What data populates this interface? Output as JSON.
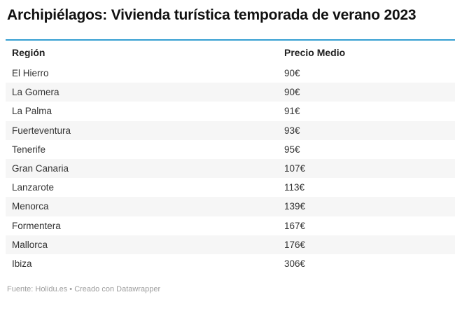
{
  "header": {
    "title": "Archipiélagos: Vivienda turística temporada de verano 2023"
  },
  "table": {
    "columns": [
      {
        "label": "Región"
      },
      {
        "label": "Precio Medio"
      }
    ],
    "rows": [
      {
        "region": "El Hierro",
        "price": "90€"
      },
      {
        "region": "La Gomera",
        "price": "90€"
      },
      {
        "region": "La Palma",
        "price": "91€"
      },
      {
        "region": "Fuerteventura",
        "price": "93€"
      },
      {
        "region": "Tenerife",
        "price": "95€"
      },
      {
        "region": "Gran Canaria",
        "price": "107€"
      },
      {
        "region": "Lanzarote",
        "price": "113€"
      },
      {
        "region": "Menorca",
        "price": "139€"
      },
      {
        "region": "Formentera",
        "price": "167€"
      },
      {
        "region": "Mallorca",
        "price": "176€"
      },
      {
        "region": "Ibiza",
        "price": "306€"
      }
    ]
  },
  "footer": {
    "source_prefix": "Fuente:",
    "source_link": "Holidu.es",
    "attribution_prefix": "• Creado con",
    "attribution_link": "Datawrapper"
  },
  "colors": {
    "accent_line": "#359fd2",
    "stripe": "#f6f6f6",
    "body_text": "#333333",
    "header_text": "#202020",
    "muted_text": "#9d9d9d"
  },
  "chart_data": {
    "type": "table",
    "title": "Archipiélagos: Vivienda turística temporada de verano 2023",
    "columns": [
      "Región",
      "Precio Medio"
    ],
    "categories": [
      "El Hierro",
      "La Gomera",
      "La Palma",
      "Fuerteventura",
      "Tenerife",
      "Gran Canaria",
      "Lanzarote",
      "Menorca",
      "Formentera",
      "Mallorca",
      "Ibiza"
    ],
    "values": [
      90,
      90,
      91,
      93,
      95,
      107,
      113,
      139,
      167,
      176,
      306
    ],
    "unit": "€",
    "sorted": "ascending by price",
    "source_note": "Fuente: Holidu.es • Creado con Datawrapper"
  }
}
